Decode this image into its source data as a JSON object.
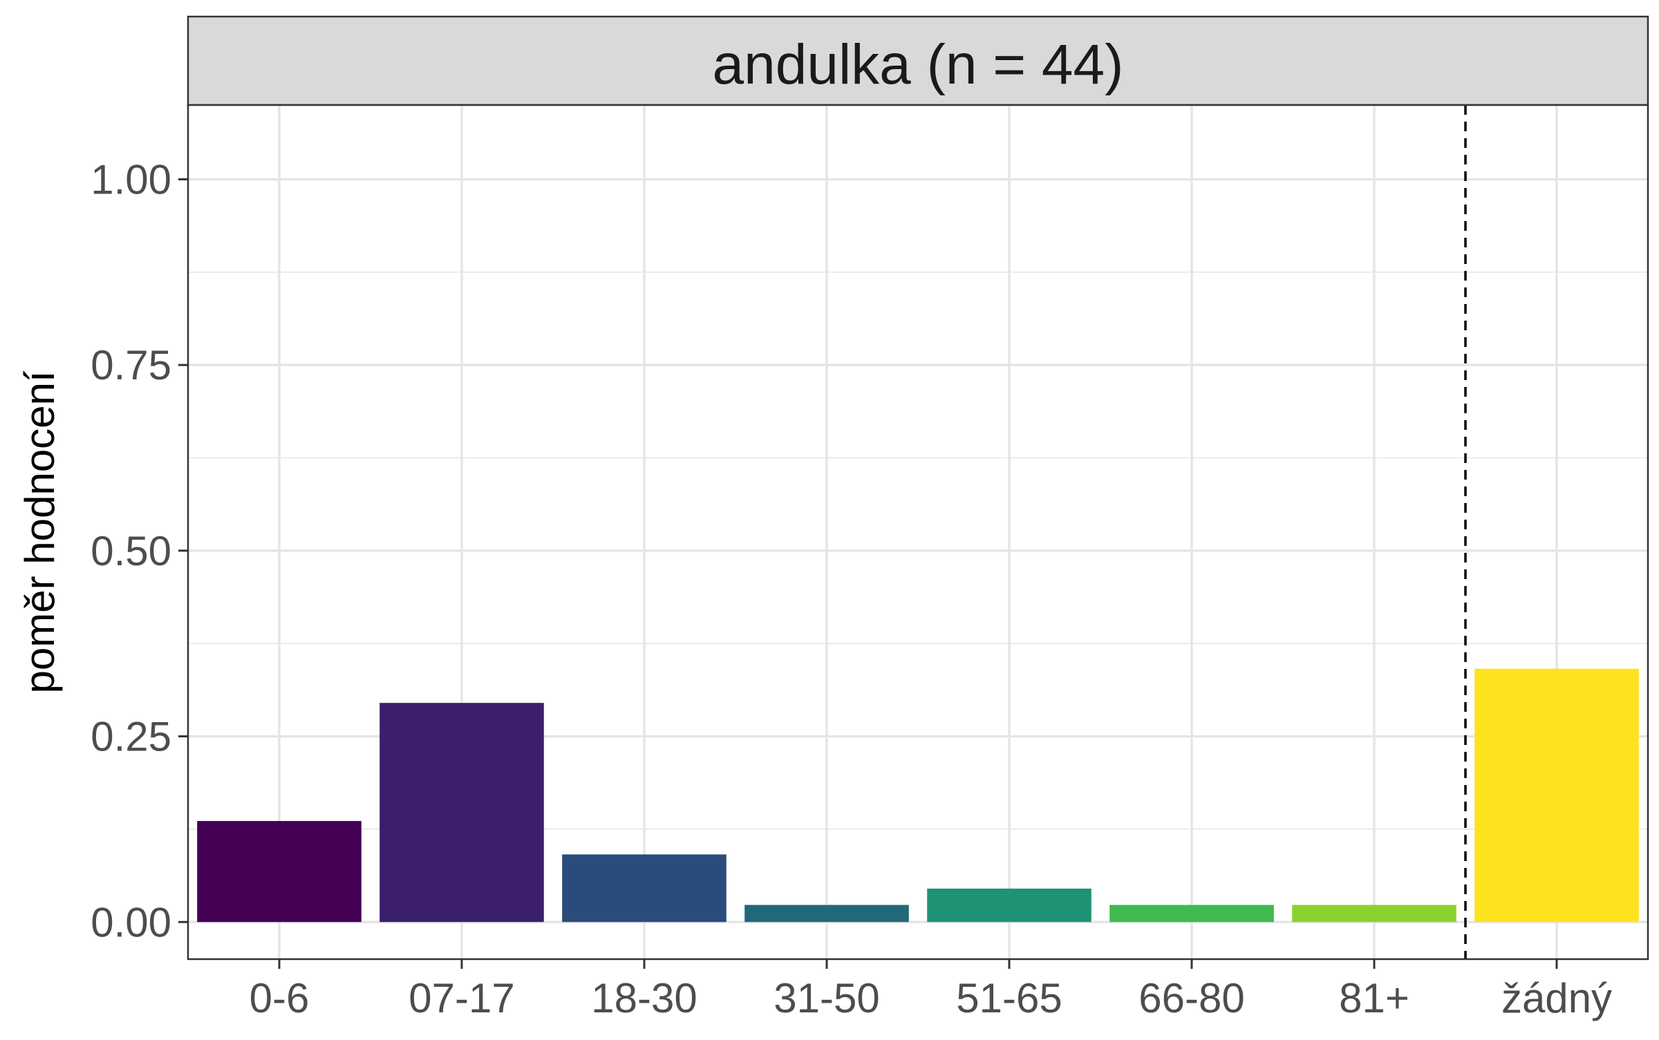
{
  "chart_data": {
    "type": "bar",
    "facet_label": "andulka (n = 44)",
    "ylabel": "poměr hodnocení",
    "xlabel": "",
    "categories": [
      "0-6",
      "07-17",
      "18-30",
      "31-50",
      "51-65",
      "66-80",
      "81+",
      "žádný"
    ],
    "values": [
      0.136,
      0.295,
      0.091,
      0.023,
      0.045,
      0.023,
      0.023,
      0.341
    ],
    "colors": [
      "#440154",
      "#3B1F6B",
      "#2A4C7A",
      "#23677B",
      "#209276",
      "#3FB950",
      "#8BD22E",
      "#FDE31E"
    ],
    "ylim": [
      -0.05,
      1.1
    ],
    "yticks": [
      {
        "value": 0.0,
        "label": "0.00"
      },
      {
        "value": 0.25,
        "label": "0.25"
      },
      {
        "value": 0.5,
        "label": "0.50"
      },
      {
        "value": 0.75,
        "label": "0.75"
      },
      {
        "value": 1.0,
        "label": "1.00"
      }
    ],
    "separator_after_category": "81+",
    "grid": true,
    "legend": "none"
  }
}
